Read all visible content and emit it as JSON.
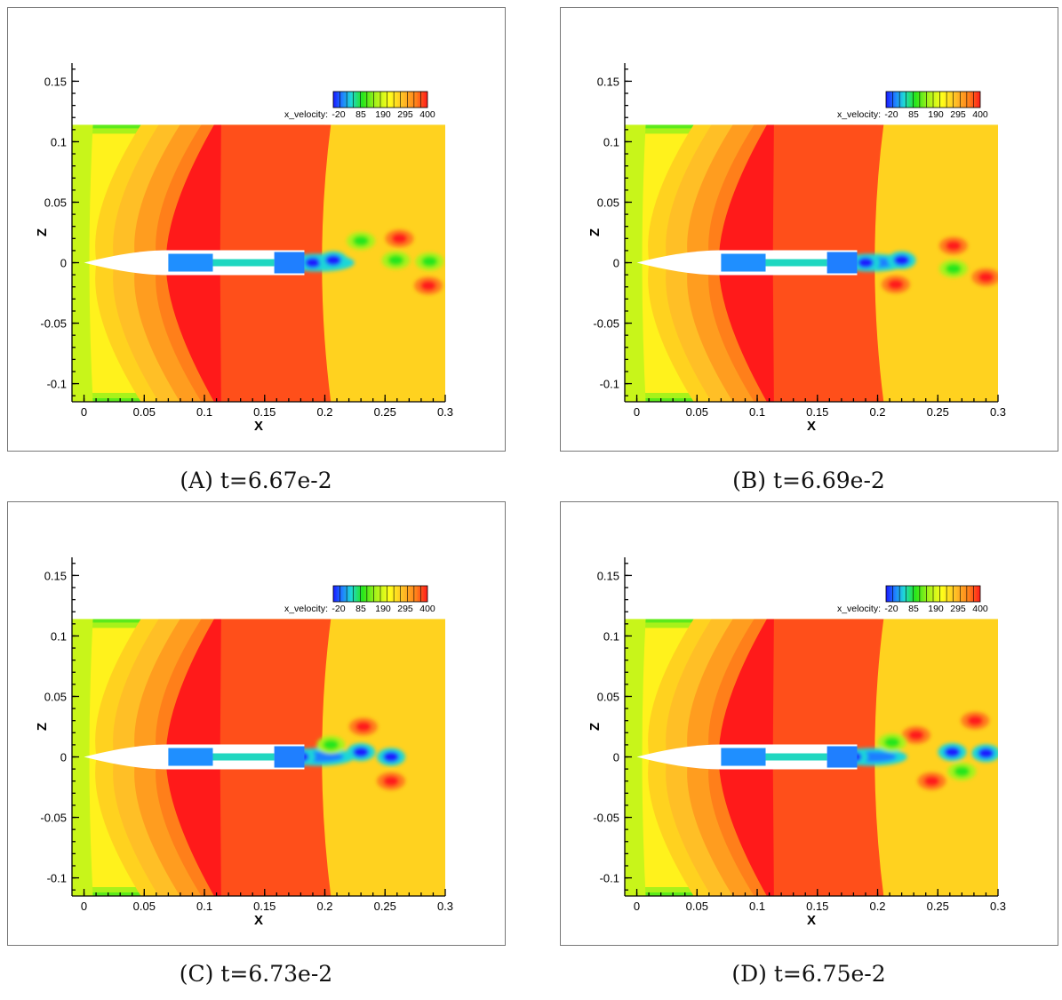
{
  "chart_data": [
    {
      "type": "heatmap",
      "label": "A",
      "caption": "t=6.67e-2",
      "xlabel": "X",
      "ylabel": "Z",
      "xlim": [
        -0.01,
        0.3
      ],
      "ylim": [
        -0.115,
        0.165
      ],
      "xticks": [
        "0",
        "0.05",
        "0.1",
        "0.15",
        "0.2",
        "0.25",
        "0.3"
      ],
      "yticks": [
        "0.15",
        "0.1",
        "0.05",
        "0",
        "-0.05",
        "-0.1"
      ],
      "colorbar": {
        "title": "x_velocity:",
        "ticks": [
          "-20",
          "85",
          "190",
          "295",
          "400"
        ],
        "range": [
          -20,
          400
        ]
      },
      "wake_features": [
        {
          "x": 0.19,
          "z": 0.0,
          "kind": "low"
        },
        {
          "x": 0.207,
          "z": 0.002,
          "kind": "low"
        },
        {
          "x": 0.262,
          "z": 0.02,
          "kind": "high"
        },
        {
          "x": 0.286,
          "z": -0.019,
          "kind": "high"
        },
        {
          "x": 0.259,
          "z": 0.002,
          "kind": "mid"
        },
        {
          "x": 0.287,
          "z": 0.001,
          "kind": "mid"
        },
        {
          "x": 0.23,
          "z": 0.018,
          "kind": "mid"
        }
      ]
    },
    {
      "type": "heatmap",
      "label": "B",
      "caption": "t=6.69e-2",
      "xlabel": "X",
      "ylabel": "Z",
      "xlim": [
        -0.01,
        0.3
      ],
      "ylim": [
        -0.115,
        0.165
      ],
      "xticks": [
        "0",
        "0.05",
        "0.1",
        "0.15",
        "0.2",
        "0.25",
        "0.3"
      ],
      "yticks": [
        "0.15",
        "0.1",
        "0.05",
        "0",
        "-0.05",
        "-0.1"
      ],
      "colorbar": {
        "title": "x_velocity:",
        "ticks": [
          "-20",
          "85",
          "190",
          "295",
          "400"
        ],
        "range": [
          -20,
          400
        ]
      },
      "wake_features": [
        {
          "x": 0.19,
          "z": 0.0,
          "kind": "low"
        },
        {
          "x": 0.22,
          "z": 0.002,
          "kind": "low"
        },
        {
          "x": 0.263,
          "z": 0.014,
          "kind": "high"
        },
        {
          "x": 0.263,
          "z": -0.005,
          "kind": "mid"
        },
        {
          "x": 0.215,
          "z": -0.018,
          "kind": "high"
        },
        {
          "x": 0.29,
          "z": -0.012,
          "kind": "high"
        }
      ]
    },
    {
      "type": "heatmap",
      "label": "C",
      "caption": "t=6.73e-2",
      "xlabel": "X",
      "ylabel": "Z",
      "xlim": [
        -0.01,
        0.3
      ],
      "ylim": [
        -0.115,
        0.165
      ],
      "xticks": [
        "0",
        "0.05",
        "0.1",
        "0.15",
        "0.2",
        "0.25",
        "0.3"
      ],
      "yticks": [
        "0.15",
        "0.1",
        "0.05",
        "0",
        "-0.05",
        "-0.1"
      ],
      "colorbar": {
        "title": "x_velocity:",
        "ticks": [
          "-20",
          "85",
          "190",
          "295",
          "400"
        ],
        "range": [
          -20,
          400
        ]
      },
      "wake_features": [
        {
          "x": 0.18,
          "z": 0.0,
          "kind": "low"
        },
        {
          "x": 0.23,
          "z": 0.004,
          "kind": "low"
        },
        {
          "x": 0.255,
          "z": 0.0,
          "kind": "low"
        },
        {
          "x": 0.232,
          "z": 0.025,
          "kind": "high"
        },
        {
          "x": 0.255,
          "z": -0.02,
          "kind": "high"
        },
        {
          "x": 0.205,
          "z": 0.01,
          "kind": "mid"
        }
      ]
    },
    {
      "type": "heatmap",
      "label": "D",
      "caption": "t=6.75e-2",
      "xlabel": "X",
      "ylabel": "Z",
      "xlim": [
        -0.01,
        0.3
      ],
      "ylim": [
        -0.115,
        0.165
      ],
      "xticks": [
        "0",
        "0.05",
        "0.1",
        "0.15",
        "0.2",
        "0.25",
        "0.3"
      ],
      "yticks": [
        "0.15",
        "0.1",
        "0.05",
        "0",
        "-0.05",
        "-0.1"
      ],
      "colorbar": {
        "title": "x_velocity:",
        "ticks": [
          "-20",
          "85",
          "190",
          "295",
          "400"
        ],
        "range": [
          -20,
          400
        ]
      },
      "wake_features": [
        {
          "x": 0.18,
          "z": 0.0,
          "kind": "low"
        },
        {
          "x": 0.262,
          "z": 0.004,
          "kind": "low"
        },
        {
          "x": 0.29,
          "z": 0.003,
          "kind": "low"
        },
        {
          "x": 0.281,
          "z": 0.03,
          "kind": "high"
        },
        {
          "x": 0.232,
          "z": 0.018,
          "kind": "high"
        },
        {
          "x": 0.245,
          "z": -0.02,
          "kind": "high"
        },
        {
          "x": 0.212,
          "z": 0.012,
          "kind": "mid"
        },
        {
          "x": 0.27,
          "z": -0.012,
          "kind": "mid"
        }
      ]
    }
  ]
}
